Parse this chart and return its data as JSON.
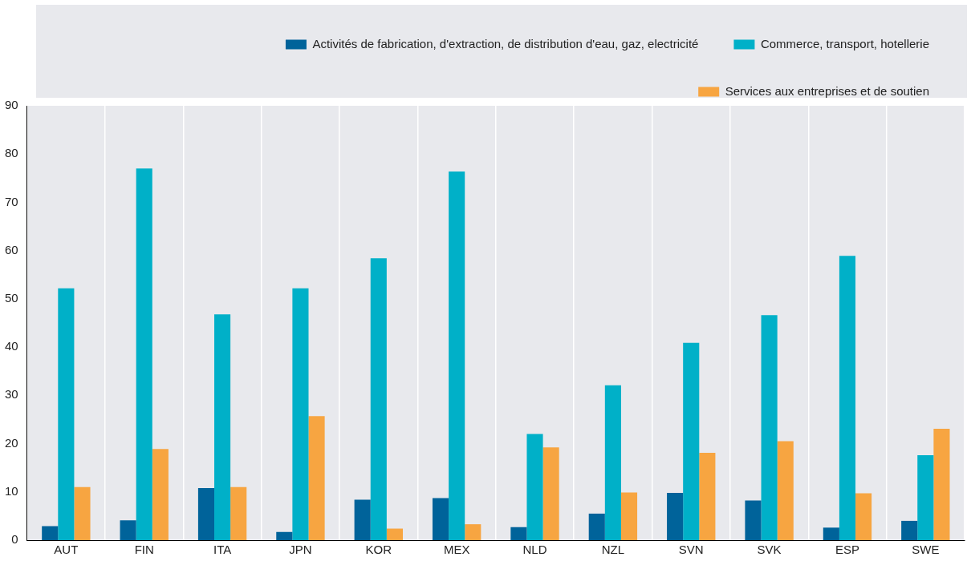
{
  "chart_data": {
    "type": "bar",
    "categories": [
      "AUT",
      "FIN",
      "ITA",
      "JPN",
      "KOR",
      "MEX",
      "NLD",
      "NZL",
      "SVN",
      "SVK",
      "ESP",
      "SWE"
    ],
    "series": [
      {
        "name": "Activités de fabrication, d'extraction, de distribution d'eau, gaz, electricité",
        "color": "#00639a",
        "values": [
          2.9,
          4.1,
          10.8,
          1.7,
          8.4,
          8.7,
          2.7,
          5.5,
          9.8,
          8.2,
          2.6,
          4.0
        ]
      },
      {
        "name": "Commerce, transport, hotellerie",
        "color": "#00b0c8",
        "values": [
          52.2,
          77.0,
          46.8,
          52.2,
          58.4,
          76.4,
          22.0,
          32.1,
          40.9,
          46.6,
          58.9,
          17.6
        ]
      },
      {
        "name": "Services aux entreprises et de soutien",
        "color": "#f7a541",
        "values": [
          11.0,
          18.9,
          11.0,
          25.7,
          2.4,
          3.3,
          19.2,
          9.9,
          18.1,
          20.5,
          9.7,
          23.1
        ]
      }
    ],
    "ylim": [
      0,
      90
    ],
    "yticks": [
      0,
      10,
      20,
      30,
      40,
      50,
      60,
      70,
      80,
      90
    ],
    "grid": "x",
    "legend": "top"
  }
}
